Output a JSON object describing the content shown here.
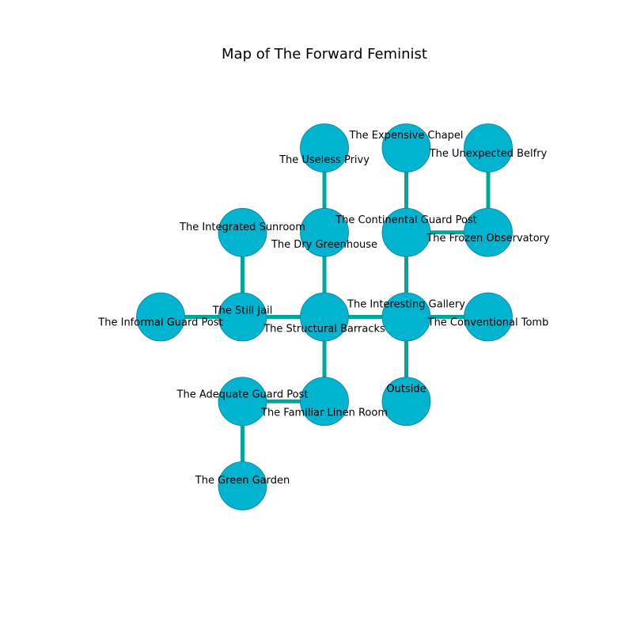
{
  "title": "Map of The Forward Feminist",
  "colors": {
    "node_fill": "#00b4cf",
    "node_stroke": "#0a7f95",
    "edge": "#00a79d",
    "background": "#ffffff"
  },
  "rooms": [
    {
      "id": "useless-privy",
      "label": "The Useless Privy",
      "col": 2,
      "row": 0
    },
    {
      "id": "expensive-chapel",
      "label": "The Expensive Chapel",
      "col": 3,
      "row": 0
    },
    {
      "id": "unexpected-belfry",
      "label": "The Unexpected Belfry",
      "col": 4,
      "row": 0
    },
    {
      "id": "integrated-sunroom",
      "label": "The Integrated Sunroom",
      "col": 1,
      "row": 1
    },
    {
      "id": "dry-greenhouse",
      "label": "The Dry Greenhouse",
      "col": 2,
      "row": 1
    },
    {
      "id": "continental-guard-post",
      "label": "The Continental Guard Post",
      "col": 3,
      "row": 1
    },
    {
      "id": "frozen-observatory",
      "label": "The Frozen Observatory",
      "col": 4,
      "row": 1
    },
    {
      "id": "informal-guard-post",
      "label": "The Informal Guard Post",
      "col": 0,
      "row": 2
    },
    {
      "id": "still-jail",
      "label": "The Still Jail",
      "col": 1,
      "row": 2
    },
    {
      "id": "structural-barracks",
      "label": "The Structural Barracks",
      "col": 2,
      "row": 2
    },
    {
      "id": "interesting-gallery",
      "label": "The Interesting Gallery",
      "col": 3,
      "row": 2
    },
    {
      "id": "conventional-tomb",
      "label": "The Conventional Tomb",
      "col": 4,
      "row": 2
    },
    {
      "id": "adequate-guard-post",
      "label": "The Adequate Guard Post",
      "col": 1,
      "row": 3
    },
    {
      "id": "familiar-linen-room",
      "label": "The Familiar Linen Room",
      "col": 2,
      "row": 3
    },
    {
      "id": "outside",
      "label": "Outside",
      "col": 3,
      "row": 3
    },
    {
      "id": "green-garden",
      "label": "The Green Garden",
      "col": 1,
      "row": 4
    }
  ],
  "connections": [
    [
      "useless-privy",
      "dry-greenhouse"
    ],
    [
      "expensive-chapel",
      "continental-guard-post"
    ],
    [
      "unexpected-belfry",
      "frozen-observatory"
    ],
    [
      "continental-guard-post",
      "frozen-observatory"
    ],
    [
      "integrated-sunroom",
      "still-jail"
    ],
    [
      "dry-greenhouse",
      "structural-barracks"
    ],
    [
      "continental-guard-post",
      "interesting-gallery"
    ],
    [
      "informal-guard-post",
      "still-jail"
    ],
    [
      "still-jail",
      "structural-barracks"
    ],
    [
      "structural-barracks",
      "interesting-gallery"
    ],
    [
      "interesting-gallery",
      "conventional-tomb"
    ],
    [
      "structural-barracks",
      "familiar-linen-room"
    ],
    [
      "interesting-gallery",
      "outside"
    ],
    [
      "adequate-guard-post",
      "familiar-linen-room"
    ],
    [
      "adequate-guard-post",
      "green-garden"
    ]
  ]
}
